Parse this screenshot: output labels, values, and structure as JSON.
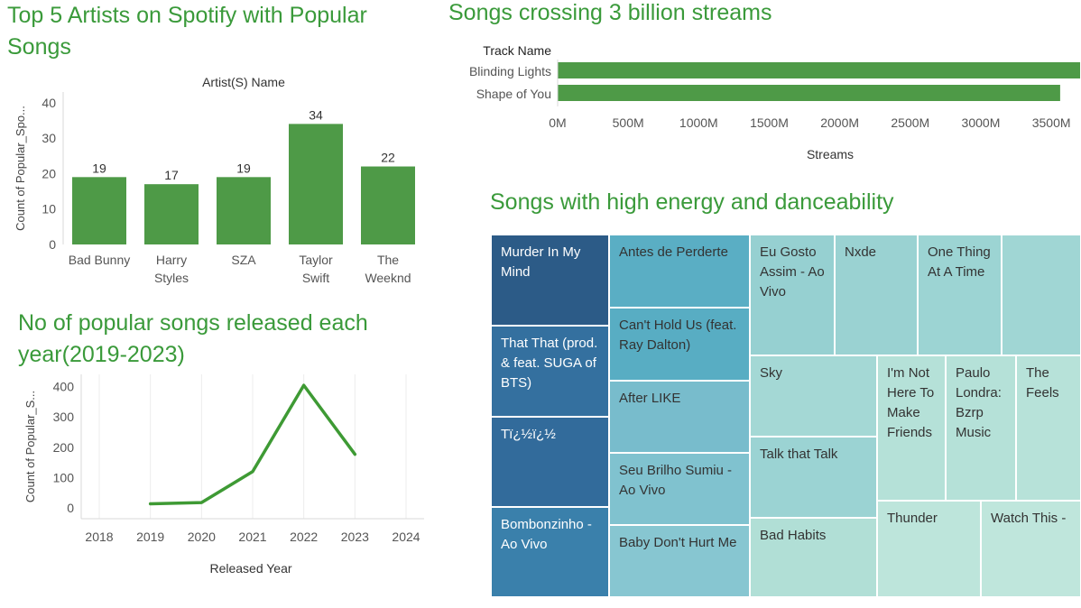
{
  "titles": {
    "artists": "Top 5 Artists on Spotify with Popular Songs",
    "streams": "Songs crossing 3 billion streams",
    "years": "No of popular songs released each year(2019-2023)",
    "treemap": "Songs with high energy and danceability"
  },
  "colors": {
    "green": "#4e9a47",
    "line_green": "#3e9a34",
    "title_green": "#3a9a3a",
    "axis_text": "#555555",
    "grid": "#ececec"
  },
  "chart_data": [
    {
      "type": "bar",
      "title": "Top 5 Artists on Spotify with Popular Songs",
      "xlabel": "Artist(S) Name",
      "ylabel": "Count of Popular_Spo...",
      "categories": [
        "Bad Bunny",
        "Harry Styles",
        "SZA",
        "Taylor Swift",
        "The Weeknd"
      ],
      "category_lines": [
        [
          "Bad Bunny"
        ],
        [
          "Harry",
          "Styles"
        ],
        [
          "SZA"
        ],
        [
          "Taylor",
          "Swift"
        ],
        [
          "The",
          "Weeknd"
        ]
      ],
      "values": [
        19,
        17,
        19,
        34,
        22
      ],
      "yticks": [
        0,
        10,
        20,
        30,
        40
      ],
      "ylim": [
        0,
        43
      ]
    },
    {
      "type": "bar",
      "orientation": "horizontal",
      "title": "Songs crossing 3 billion streams",
      "row_header": "Track Name",
      "xlabel": "Streams",
      "categories": [
        "Blinding Lights",
        "Shape of You"
      ],
      "values": [
        3703895074,
        3562543890
      ],
      "xticks": [
        0,
        500000000,
        1000000000,
        1500000000,
        2000000000,
        2500000000,
        3000000000,
        3500000000
      ],
      "xtick_labels": [
        "0M",
        "500M",
        "1000M",
        "1500M",
        "2000M",
        "2500M",
        "3000M",
        "3500M"
      ],
      "xlim": [
        0,
        3703895074
      ]
    },
    {
      "type": "line",
      "title": "No of popular songs released each year(2019-2023)",
      "xlabel": "Released Year",
      "ylabel": "Count of Popular_S...",
      "x": [
        2019,
        2020,
        2021,
        2022,
        2023
      ],
      "values": [
        14,
        18,
        120,
        404,
        177
      ],
      "xticks": [
        2018,
        2019,
        2020,
        2021,
        2022,
        2023,
        2024
      ],
      "yticks": [
        0,
        100,
        200,
        300,
        400
      ],
      "xlim": [
        2017.1,
        2024.5
      ],
      "ylim": [
        -35,
        440
      ]
    },
    {
      "type": "treemap",
      "title": "Songs with high energy and danceability",
      "items": [
        {
          "name": "Murder In My Mind",
          "color": "#2c5b87",
          "text_color": "#ffffff"
        },
        {
          "name": "That That (prod. & feat. SUGA of BTS)",
          "color": "#34709f",
          "text_color": "#ffffff"
        },
        {
          "name": "Tï¿½ï¿½",
          "color": "#326b9b",
          "text_color": "#ffffff"
        },
        {
          "name": "Bombonzinho - Ao Vivo",
          "color": "#3a80ab",
          "text_color": "#ffffff"
        },
        {
          "name": "Antes de Perderte",
          "color": "#5aaec4",
          "text_color": "#333333"
        },
        {
          "name": "Can't Hold Us (feat. Ray Dalton)",
          "color": "#58adc3",
          "text_color": "#333333"
        },
        {
          "name": "After LIKE",
          "color": "#78bccc",
          "text_color": "#333333"
        },
        {
          "name": "Seu Brilho Sumiu - Ao Vivo",
          "color": "#80c2cf",
          "text_color": "#333333"
        },
        {
          "name": "Baby Don't Hurt Me",
          "color": "#87c6d1",
          "text_color": "#333333"
        },
        {
          "name": "Eu Gosto Assim - Ao Vivo",
          "color": "#96d0d1",
          "text_color": "#333333"
        },
        {
          "name": "Nxde",
          "color": "#9ad2d2",
          "text_color": "#333333"
        },
        {
          "name": "One Thing At A Time",
          "color": "#9cd4d3",
          "text_color": "#333333"
        },
        {
          "name": "",
          "color": "#a0d6d4",
          "text_color": "#333333"
        },
        {
          "name": "Sky",
          "color": "#a4d8d5",
          "text_color": "#333333"
        },
        {
          "name": "Talk that Talk",
          "color": "#9bd3d3",
          "text_color": "#333333"
        },
        {
          "name": "Bad Habits",
          "color": "#b1dfd6",
          "text_color": "#333333"
        },
        {
          "name": "I'm Not Here To Make Friends",
          "color": "#b5e1d8",
          "text_color": "#333333"
        },
        {
          "name": "Paulo Londra: Bzrp Music",
          "color": "#b5e1d8",
          "text_color": "#333333"
        },
        {
          "name": "The Feels",
          "color": "#b7e2d9",
          "text_color": "#333333"
        },
        {
          "name": "Thunder",
          "color": "#bde5db",
          "text_color": "#333333"
        },
        {
          "name": "Watch This -",
          "color": "#bfe6dc",
          "text_color": "#333333"
        }
      ]
    }
  ]
}
